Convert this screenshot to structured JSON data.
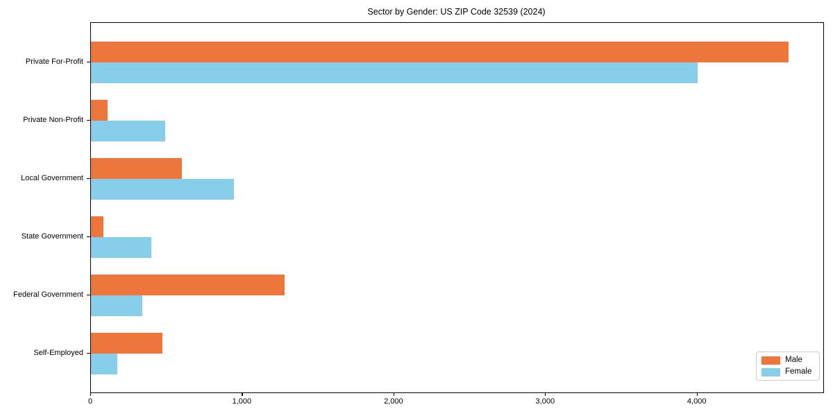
{
  "chart_data": {
    "type": "bar",
    "orientation": "horizontal",
    "title": "Sector by Gender: US ZIP Code 32539 (2024)",
    "categories": [
      "Private For-Profit",
      "Private Non-Profit",
      "Local Government",
      "State Government",
      "Federal Government",
      "Self-Employed"
    ],
    "series": [
      {
        "name": "Male",
        "color": "#ec763c",
        "values": [
          4600,
          110,
          600,
          80,
          1275,
          470
        ]
      },
      {
        "name": "Female",
        "color": "#87ceeb",
        "values": [
          4000,
          490,
          945,
          400,
          340,
          175
        ]
      }
    ],
    "xlabel": "",
    "ylabel": "",
    "xlim": [
      0,
      4830
    ],
    "xticks": {
      "values": [
        0,
        1000,
        2000,
        3000,
        4000
      ],
      "labels": [
        "0",
        "1,000",
        "2,000",
        "3,000",
        "4,000"
      ]
    },
    "grid": false,
    "legend": {
      "position": "lower right"
    }
  }
}
